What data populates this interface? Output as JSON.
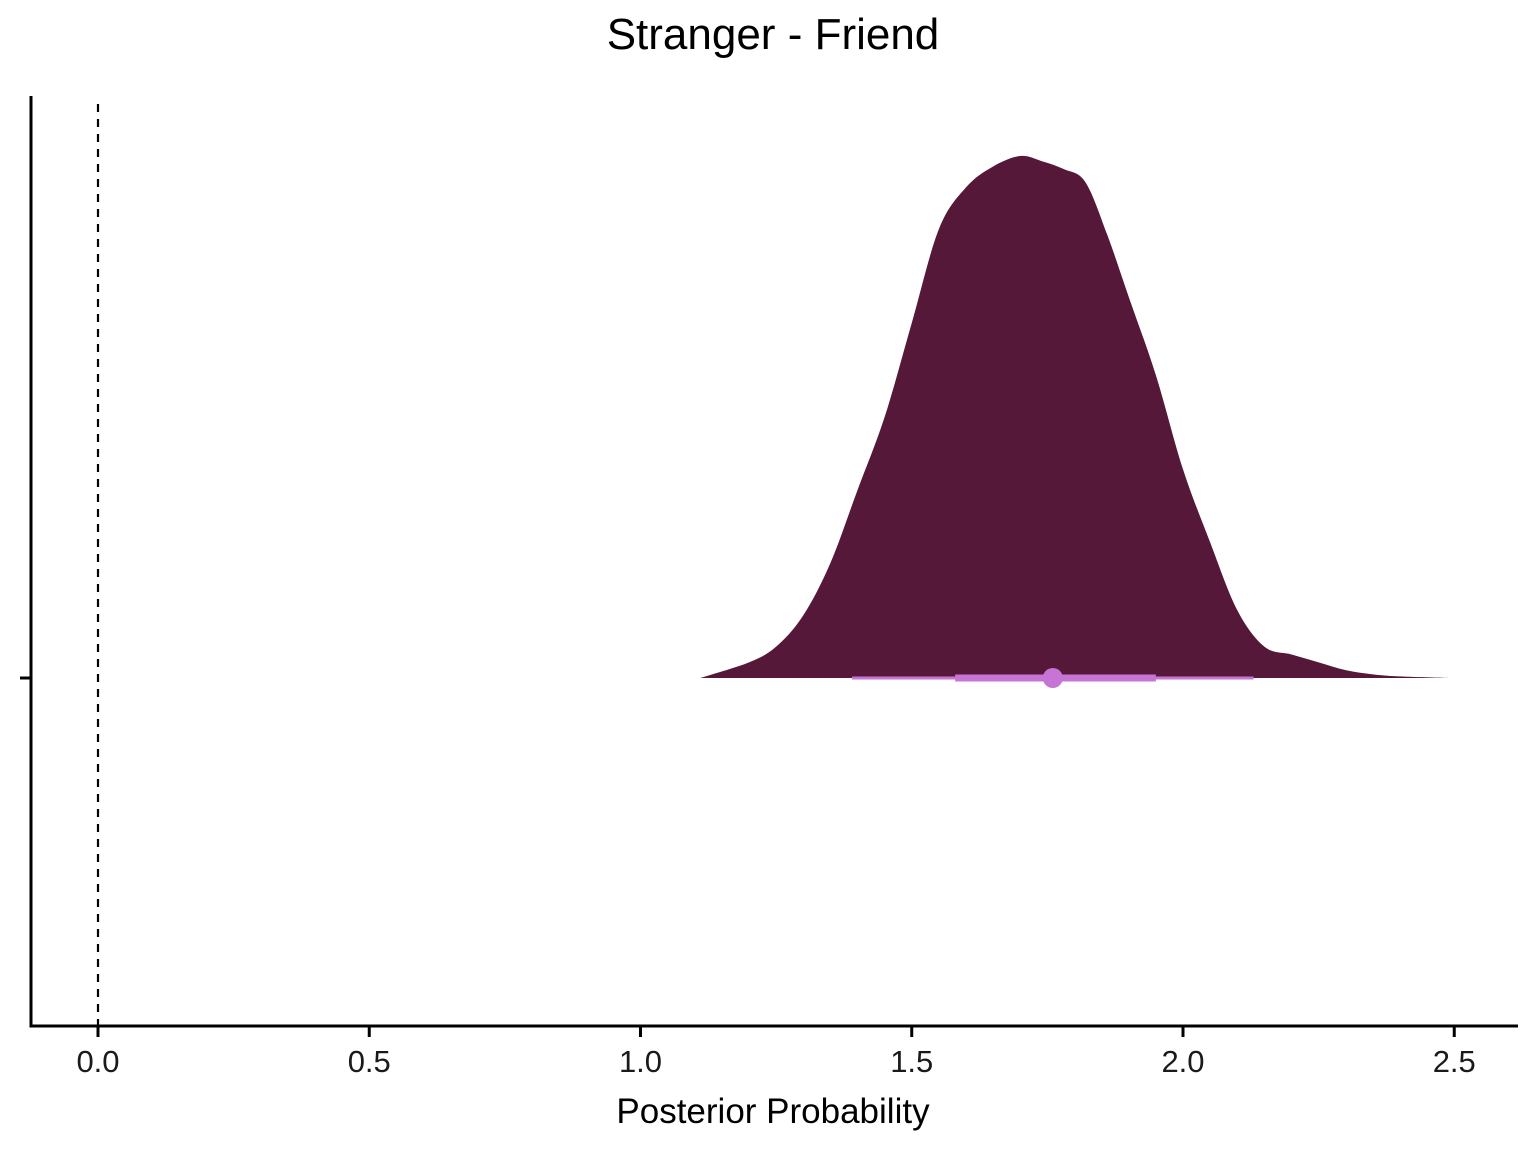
{
  "chart_data": {
    "type": "area",
    "title": "Stranger - Friend",
    "xlabel": "Posterior Probability",
    "ylabel": "",
    "xlim": [
      -0.125,
      2.6
    ],
    "xticks": [
      "0.0",
      "0.5",
      "1.0",
      "1.5",
      "2.0",
      "2.5"
    ],
    "xtick_values": [
      0.0,
      0.5,
      1.0,
      1.5,
      2.0,
      2.5
    ],
    "reference_line": {
      "x": 0.0,
      "style": "dashed"
    },
    "density": {
      "x": [
        1.11,
        1.2,
        1.25,
        1.3,
        1.35,
        1.4,
        1.45,
        1.5,
        1.55,
        1.6,
        1.65,
        1.7,
        1.74,
        1.78,
        1.82,
        1.86,
        1.9,
        1.95,
        2.0,
        2.05,
        2.1,
        2.15,
        2.2,
        2.25,
        2.3,
        2.35,
        2.4,
        2.49
      ],
      "y": [
        0.0,
        0.03,
        0.06,
        0.12,
        0.22,
        0.36,
        0.5,
        0.68,
        0.86,
        0.94,
        0.98,
        1.0,
        0.99,
        0.975,
        0.95,
        0.85,
        0.73,
        0.58,
        0.4,
        0.26,
        0.13,
        0.06,
        0.045,
        0.03,
        0.015,
        0.007,
        0.003,
        0.0
      ]
    },
    "point_estimate": 1.76,
    "interval_66": [
      1.58,
      1.95
    ],
    "interval_95": [
      1.39,
      2.13
    ],
    "colors": {
      "density_fill": "#561839",
      "interval": "#c675d4",
      "axis": "#000000"
    },
    "grid": false,
    "legend": "none"
  }
}
